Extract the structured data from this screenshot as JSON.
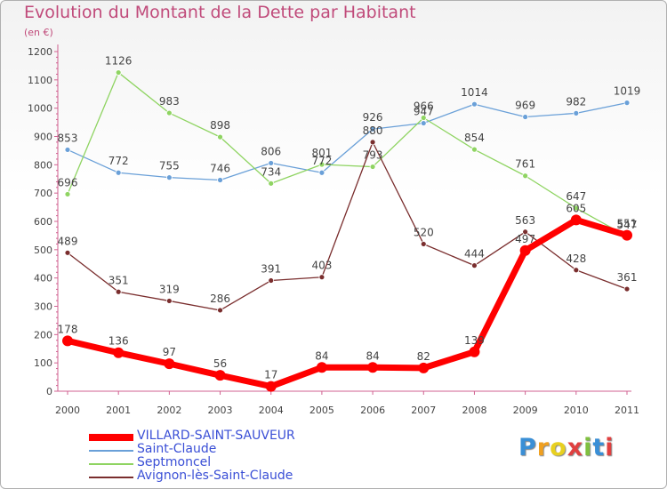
{
  "title": "Evolution du Montant de la Dette par Habitant",
  "unit": "(en €)",
  "logo": "Proxiti",
  "chart_data": {
    "type": "line",
    "title": "Evolution du Montant de la Dette par Habitant",
    "ylabel": "(en €)",
    "ylim": [
      0,
      1200
    ],
    "yticks": [
      0,
      100,
      200,
      300,
      400,
      500,
      600,
      700,
      800,
      900,
      1000,
      1100,
      1200
    ],
    "grid": false,
    "legend": "bottom",
    "categories": [
      "2000",
      "2001",
      "2002",
      "2003",
      "2004",
      "2005",
      "2006",
      "2007",
      "2008",
      "2009",
      "2010",
      "2011"
    ],
    "series": [
      {
        "name": "VILLARD-SAINT-SAUVEUR",
        "color": "#ff0000",
        "values": [
          178,
          136,
          97,
          56,
          17,
          84,
          84,
          82,
          139,
          497,
          605,
          551
        ]
      },
      {
        "name": "Saint-Claude",
        "color": "#6aa0d8",
        "values": [
          853,
          772,
          755,
          746,
          806,
          772,
          926,
          947,
          1014,
          969,
          982,
          1019
        ]
      },
      {
        "name": "Septmoncel",
        "color": "#8fd462",
        "values": [
          696,
          1126,
          983,
          898,
          734,
          801,
          793,
          966,
          854,
          761,
          647,
          547
        ]
      },
      {
        "name": "Avignon-lès-Saint-Claude",
        "color": "#7a2e2e",
        "values": [
          489,
          351,
          319,
          286,
          391,
          403,
          880,
          520,
          444,
          563,
          428,
          361
        ]
      }
    ]
  }
}
